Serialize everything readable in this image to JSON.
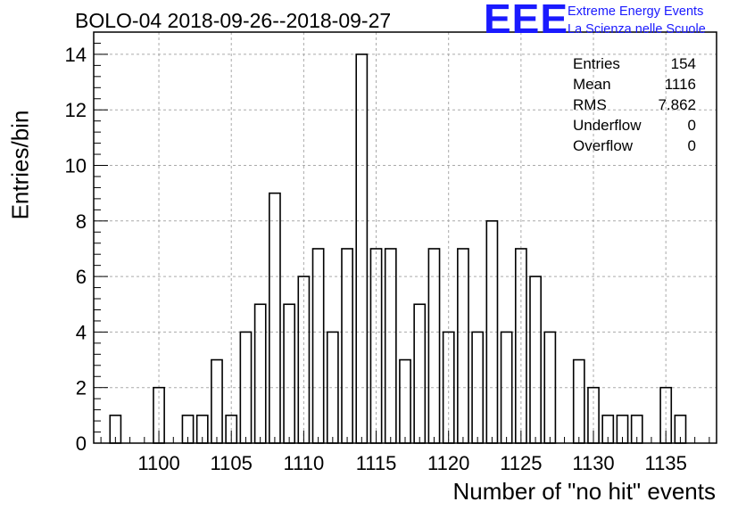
{
  "title": "BOLO-04 2018-09-26--2018-09-27",
  "logo": {
    "mark": "EEE",
    "line1": "Extreme Energy Events",
    "line2": "La Scienza nelle Scuole",
    "color": "#1a1aff"
  },
  "stats": [
    {
      "label": "Entries",
      "value": "154"
    },
    {
      "label": "Mean",
      "value": "1116"
    },
    {
      "label": "RMS",
      "value": "7.862"
    },
    {
      "label": "Underflow",
      "value": "0"
    },
    {
      "label": "Overflow",
      "value": "0"
    }
  ],
  "chart_data": {
    "type": "bar",
    "subtype": "histogram",
    "xlabel": "Number of \"no hit\" events",
    "ylabel": "Entries/bin",
    "xlim": [
      1095.5,
      1138.5
    ],
    "ylim": [
      0,
      14.8
    ],
    "bin_width": 0.75,
    "x_ticks": [
      1100,
      1105,
      1110,
      1115,
      1120,
      1125,
      1130,
      1135
    ],
    "y_ticks": [
      0,
      2,
      4,
      6,
      8,
      10,
      12,
      14
    ],
    "grid": true,
    "line_color": "#000000",
    "bins": [
      {
        "x": 1097,
        "value": 1
      },
      {
        "x": 1100,
        "value": 2
      },
      {
        "x": 1102,
        "value": 1
      },
      {
        "x": 1103,
        "value": 1
      },
      {
        "x": 1104,
        "value": 3
      },
      {
        "x": 1105,
        "value": 1
      },
      {
        "x": 1106,
        "value": 4
      },
      {
        "x": 1107,
        "value": 5
      },
      {
        "x": 1108,
        "value": 9
      },
      {
        "x": 1109,
        "value": 5
      },
      {
        "x": 1110,
        "value": 6
      },
      {
        "x": 1111,
        "value": 7
      },
      {
        "x": 1112,
        "value": 4
      },
      {
        "x": 1113,
        "value": 7
      },
      {
        "x": 1114,
        "value": 14
      },
      {
        "x": 1115,
        "value": 7
      },
      {
        "x": 1116,
        "value": 7
      },
      {
        "x": 1117,
        "value": 3
      },
      {
        "x": 1118,
        "value": 5
      },
      {
        "x": 1119,
        "value": 7
      },
      {
        "x": 1120,
        "value": 4
      },
      {
        "x": 1121,
        "value": 7
      },
      {
        "x": 1122,
        "value": 4
      },
      {
        "x": 1123,
        "value": 8
      },
      {
        "x": 1124,
        "value": 4
      },
      {
        "x": 1125,
        "value": 7
      },
      {
        "x": 1126,
        "value": 6
      },
      {
        "x": 1127,
        "value": 4
      },
      {
        "x": 1129,
        "value": 3
      },
      {
        "x": 1130,
        "value": 2
      },
      {
        "x": 1131,
        "value": 1
      },
      {
        "x": 1132,
        "value": 1
      },
      {
        "x": 1133,
        "value": 1
      },
      {
        "x": 1135,
        "value": 2
      },
      {
        "x": 1136,
        "value": 1
      }
    ]
  }
}
